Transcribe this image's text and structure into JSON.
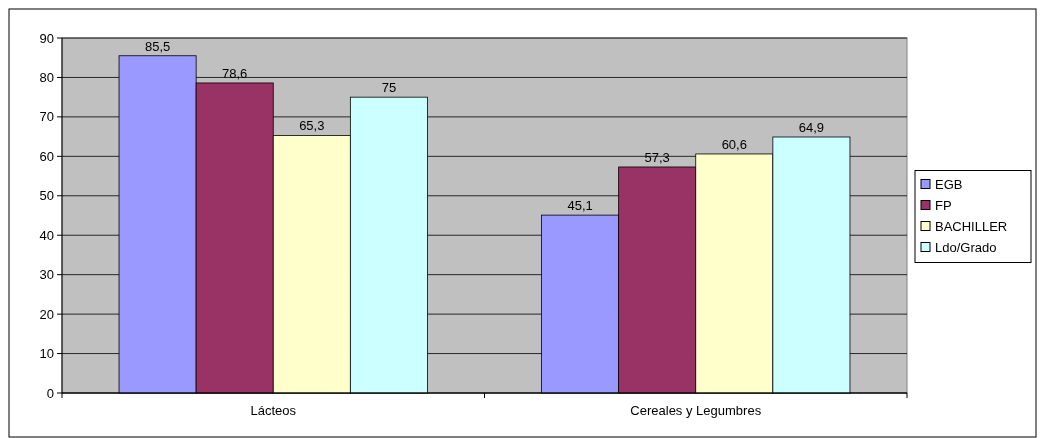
{
  "chart_data": {
    "type": "bar",
    "categories": [
      "Lácteos",
      "Cereales y Legumbres"
    ],
    "series": [
      {
        "name": "EGB",
        "color": "#9999ff",
        "values": [
          85.5,
          45.1
        ],
        "value_labels": [
          "85,5",
          "45,1"
        ]
      },
      {
        "name": "FP",
        "color": "#993366",
        "values": [
          78.6,
          57.3
        ],
        "value_labels": [
          "78,6",
          "57,3"
        ]
      },
      {
        "name": "BACHILLER",
        "color": "#ffffcc",
        "values": [
          65.3,
          60.6
        ],
        "value_labels": [
          "65,3",
          "60,6"
        ]
      },
      {
        "name": "Ldo/Grado",
        "color": "#ccffff",
        "values": [
          75,
          64.9
        ],
        "value_labels": [
          "75",
          "64,9"
        ]
      }
    ],
    "ylim": [
      0,
      90
    ],
    "yticks": [
      0,
      10,
      20,
      30,
      40,
      50,
      60,
      70,
      80,
      90
    ],
    "grid": "y",
    "legend": "right"
  }
}
